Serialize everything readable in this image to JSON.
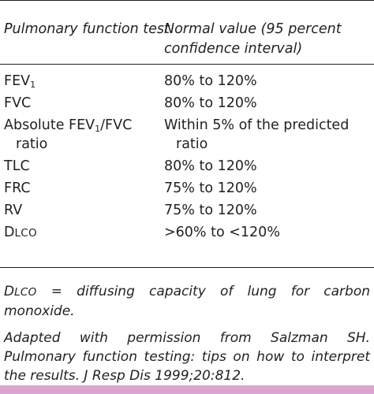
{
  "table": {
    "header": {
      "test": "Pulmonary function test",
      "normal": "Normal value (95 percent confidence interval)"
    },
    "rows": [
      {
        "test": "FEV",
        "sub": "1",
        "test_suffix": "",
        "value": "80% to 120%"
      },
      {
        "test": "FVC",
        "value": "80% to 120%"
      },
      {
        "test_pre": "Absolute FEV",
        "sub": "1",
        "test_post": "/FVC",
        "test_cont": "ratio",
        "value": "Within 5% of the predicted",
        "value_cont": "ratio"
      },
      {
        "test": "TLC",
        "value": "80% to 120%"
      },
      {
        "test": "FRC",
        "value": "75% to 120%"
      },
      {
        "test": "RV",
        "value": "75% to 120%"
      },
      {
        "test_big": "D",
        "test_small": "LCO",
        "value": ">60% to <120%"
      }
    ]
  },
  "notes": {
    "dlco_big": "D",
    "dlco_small": "LCO",
    "dlco_def": " = diffusing capacity of lung for carbon monoxide.",
    "source": "Adapted with permission from Salzman SH. Pulmonary function testing: tips on how to interpret the results. J Resp Dis 1999;20:812."
  },
  "colors": {
    "bar": "#d9a6cf",
    "text": "#231f20"
  }
}
